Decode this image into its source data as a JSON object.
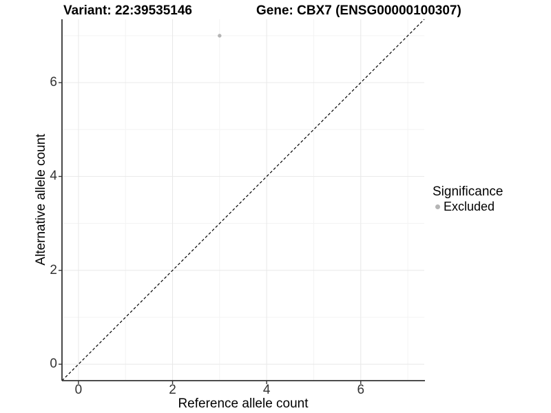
{
  "chart_data": {
    "type": "scatter",
    "title_left": "Variant: 22:39535146",
    "title_right": "Gene: CBX7 (ENSG00000100307)",
    "xlabel": "Reference allele count",
    "ylabel": "Alternative allele count",
    "xlim": [
      -0.35,
      7.35
    ],
    "ylim": [
      -0.35,
      7.35
    ],
    "xticks": [
      0,
      2,
      4,
      6
    ],
    "yticks": [
      0,
      2,
      4,
      6
    ],
    "xticks_minor": [
      1,
      3,
      5,
      7
    ],
    "yticks_minor": [
      1,
      3,
      5,
      7
    ],
    "grid": "major and minor gridlines, white panel, axis lines left and bottom only",
    "reference_line": {
      "type": "identity y=x",
      "style": "dashed",
      "from": -0.35,
      "to": 7.35
    },
    "points": [
      {
        "x": 3,
        "y": 7,
        "series": "Excluded"
      }
    ],
    "legend": {
      "title": "Significance",
      "position": "right",
      "entries": [
        {
          "label": "Excluded",
          "marker": "circle",
          "color": "#b5b5b5"
        }
      ]
    }
  },
  "colors": {
    "background": "#ffffff",
    "grid_major": "#e8e8e8",
    "grid_minor": "#f3f3f3",
    "axis_line": "#333333",
    "tick": "#333333",
    "tick_label": "#333333",
    "text": "#000000",
    "ref_line": "#000000",
    "point_excluded": "#b5b5b5"
  }
}
